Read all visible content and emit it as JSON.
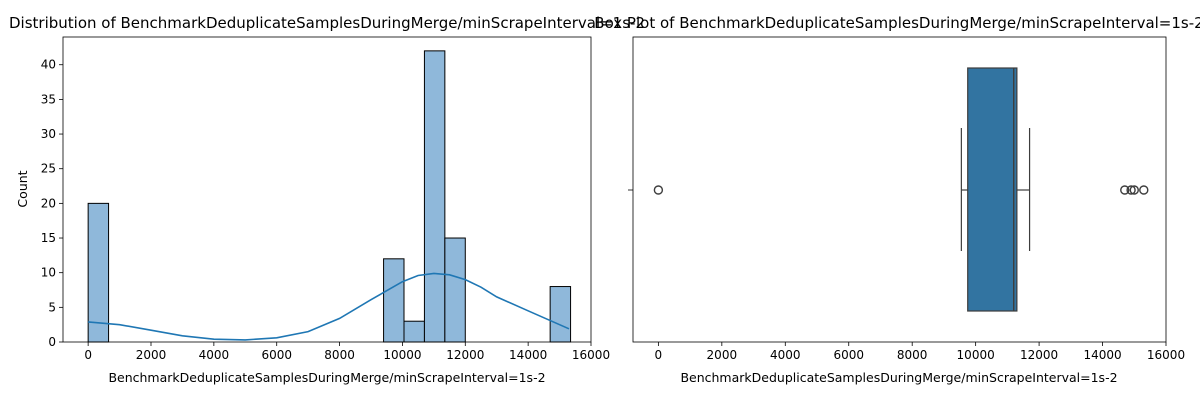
{
  "chart_data": [
    {
      "type": "histogram",
      "title": "Distribution of BenchmarkDeduplicateSamplesDuringMerge/minScrapeInterval=1s-2",
      "xlabel": "BenchmarkDeduplicateSamplesDuringMerge/minScrapeInterval=1s-2",
      "ylabel": "Count",
      "xlim": [
        -800,
        16000
      ],
      "ylim": [
        0,
        44
      ],
      "xticks": [
        0,
        2000,
        4000,
        6000,
        8000,
        10000,
        12000,
        14000,
        16000
      ],
      "yticks": [
        0,
        5,
        10,
        15,
        20,
        25,
        30,
        35,
        40
      ],
      "bin_width": 650,
      "bins": [
        {
          "start": 0,
          "count": 20
        },
        {
          "start": 9400,
          "count": 12
        },
        {
          "start": 10050,
          "count": 3
        },
        {
          "start": 10700,
          "count": 42
        },
        {
          "start": 11350,
          "count": 15
        },
        {
          "start": 14700,
          "count": 8
        }
      ],
      "kde": {
        "x": [
          0,
          500,
          1000,
          2000,
          3000,
          4000,
          5000,
          6000,
          7000,
          8000,
          9000,
          10000,
          10500,
          11000,
          11500,
          12000,
          12500,
          13000,
          14000,
          15300
        ],
        "y": [
          2.9,
          2.7,
          2.5,
          1.7,
          0.9,
          0.4,
          0.3,
          0.6,
          1.5,
          3.4,
          6.1,
          8.7,
          9.6,
          9.9,
          9.7,
          9.0,
          7.9,
          6.5,
          4.5,
          1.9
        ]
      },
      "bar_color": "#8fb8da",
      "line_color": "#1f77b4",
      "grid": false
    },
    {
      "type": "box",
      "title": "Box Plot of BenchmarkDeduplicateSamplesDuringMerge/minScrapeInterval=1s-2",
      "xlabel": "BenchmarkDeduplicateSamplesDuringMerge/minScrapeInterval=1s-2",
      "xlim": [
        -800,
        16000
      ],
      "xticks": [
        0,
        2000,
        4000,
        6000,
        8000,
        10000,
        12000,
        14000,
        16000
      ],
      "whisker_low": 9550,
      "q1": 9750,
      "median": 11200,
      "q3": 11300,
      "whisker_high": 11700,
      "outliers": [
        0,
        14700,
        14900,
        15000,
        15300
      ],
      "box_color": "#3274a1",
      "grid": false
    }
  ]
}
